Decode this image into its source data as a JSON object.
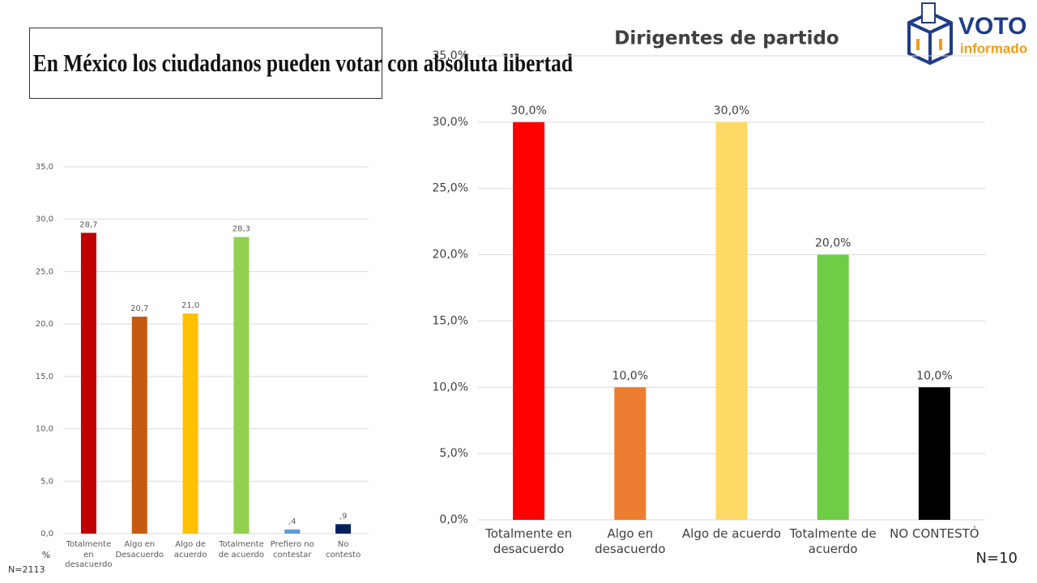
{
  "slide_title": "En México los ciudadanos pueden votar con absoluta libertad",
  "logo": {
    "text": "VOTO",
    "subtext": "informado"
  },
  "chart_data": [
    {
      "type": "bar",
      "categories": [
        "Totalmente en desacuerdo",
        "Algo en Desacuerdo",
        "Algo de acuerdo",
        "Totalmente de acuerdo",
        "Prefiero no contestar",
        "No contesto"
      ],
      "values": [
        28.7,
        20.7,
        21.0,
        28.3,
        0.4,
        0.9
      ],
      "value_labels": [
        "28,7",
        "20,7",
        "21,0",
        "28,3",
        ",4",
        ",9"
      ],
      "colors": [
        "#c00000",
        "#c55a11",
        "#ffc000",
        "#92d050",
        "#5b9bd5",
        "#002060"
      ],
      "ylim": [
        0,
        35
      ],
      "yticks": [
        {
          "value": 0,
          "label": "0,0"
        },
        {
          "value": 5,
          "label": "5,0"
        },
        {
          "value": 10,
          "label": "10,0"
        },
        {
          "value": 15,
          "label": "15,0"
        },
        {
          "value": 20,
          "label": "20,0"
        },
        {
          "value": 25,
          "label": "25,0"
        },
        {
          "value": 30,
          "label": "30,0"
        },
        {
          "value": 35,
          "label": "35,0"
        }
      ],
      "grid": true,
      "y_label": "%",
      "note": "N=2113"
    },
    {
      "type": "bar",
      "title": "Dirigentes de partido",
      "categories": [
        "Totalmente en desacuerdo",
        "Algo en desacuerdo",
        "Algo de acuerdo",
        "Totalmente de acuerdo",
        "NO CONTESTÓ"
      ],
      "values": [
        30,
        10,
        30,
        20,
        10
      ],
      "value_labels": [
        "30,0%",
        "10,0%",
        "30,0%",
        "20,0%",
        "10,0%"
      ],
      "colors": [
        "#ff0000",
        "#ed7d31",
        "#ffd966",
        "#6fcc45",
        "#000000"
      ],
      "ylim": [
        0,
        35
      ],
      "yticks": [
        {
          "value": 0,
          "label": "0,0%"
        },
        {
          "value": 5,
          "label": "5,0%"
        },
        {
          "value": 10,
          "label": "10,0%"
        },
        {
          "value": 15,
          "label": "15,0%"
        },
        {
          "value": 20,
          "label": "20,0%"
        },
        {
          "value": 25,
          "label": "25,0%"
        },
        {
          "value": 30,
          "label": "30,0%"
        },
        {
          "value": 35,
          "label": "35,0%"
        }
      ],
      "grid": true,
      "note": "N=10"
    }
  ]
}
